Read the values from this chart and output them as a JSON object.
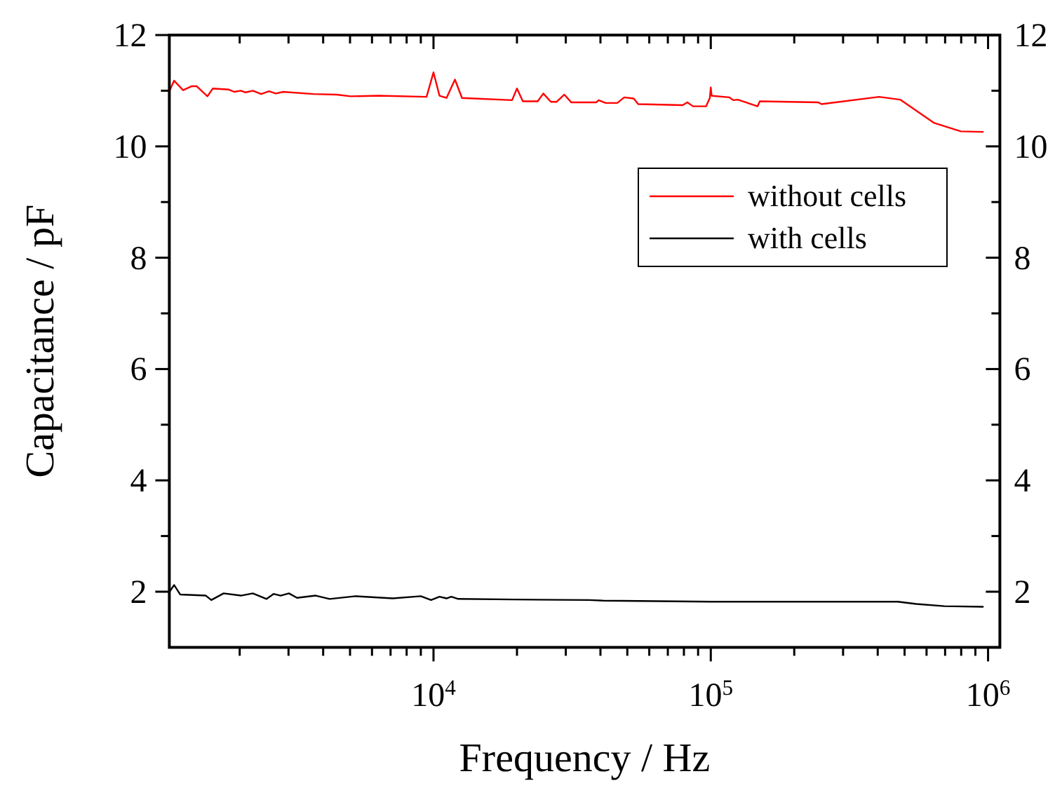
{
  "chart_data": {
    "type": "line",
    "xlabel": "Frequency / Hz",
    "ylabel": "Capacitance / pF",
    "log": "x",
    "xlim": [
      1115,
      1103000
    ],
    "ylim": [
      1,
      12
    ],
    "y2lim": [
      1,
      12
    ],
    "xticks": [
      {
        "value": 2000,
        "label": null
      },
      {
        "value": 3000,
        "label": null
      },
      {
        "value": 4000,
        "label": null
      },
      {
        "value": 5000,
        "label": null
      },
      {
        "value": 6000,
        "label": null
      },
      {
        "value": 7000,
        "label": null
      },
      {
        "value": 8000,
        "label": null
      },
      {
        "value": 9000,
        "label": null
      },
      {
        "value": 10000,
        "label": "10$^{4}$"
      },
      {
        "value": 20000,
        "label": null
      },
      {
        "value": 30000,
        "label": null
      },
      {
        "value": 40000,
        "label": null
      },
      {
        "value": 50000,
        "label": null
      },
      {
        "value": 60000,
        "label": null
      },
      {
        "value": 70000,
        "label": null
      },
      {
        "value": 80000,
        "label": null
      },
      {
        "value": 90000,
        "label": null
      },
      {
        "value": 100000,
        "label": "10$^{5}$"
      },
      {
        "value": 200000,
        "label": null
      },
      {
        "value": 300000,
        "label": null
      },
      {
        "value": 400000,
        "label": null
      },
      {
        "value": 500000,
        "label": null
      },
      {
        "value": 600000,
        "label": null
      },
      {
        "value": 700000,
        "label": null
      },
      {
        "value": 800000,
        "label": null
      },
      {
        "value": 900000,
        "label": null
      },
      {
        "value": 1000000,
        "label": "10$^{6}$"
      }
    ],
    "yticks": [
      2,
      {
        "value": 3,
        "label": null
      },
      4,
      {
        "value": 5,
        "label": null
      },
      6,
      {
        "value": 7,
        "label": null
      },
      8,
      {
        "value": 9,
        "label": null
      },
      10,
      {
        "value": 11,
        "label": null
      },
      12
    ],
    "y2ticks": [
      2,
      {
        "value": 3,
        "label": null
      },
      4,
      {
        "value": 5,
        "label": null
      },
      6,
      {
        "value": 7,
        "label": null
      },
      8,
      {
        "value": 9,
        "label": null
      },
      10,
      {
        "value": 11,
        "label": null
      },
      12
    ],
    "grid": false,
    "legend": "top right",
    "marker": "none",
    "line_style": "solid",
    "series": [
      {
        "name": "without cells",
        "color": "#ff0000",
        "x": [
          1120,
          1160,
          1250,
          1340,
          1400,
          1530,
          1600,
          1830,
          1910,
          2020,
          2100,
          2230,
          2390,
          2550,
          2700,
          2870,
          3690,
          4480,
          5030,
          6350,
          9440,
          10000,
          10510,
          11140,
          11950,
          12670,
          19200,
          20000,
          21000,
          23760,
          24890,
          26510,
          27770,
          29640,
          31420,
          38620,
          39390,
          41750,
          46000,
          48740,
          52700,
          54760,
          79200,
          82310,
          86270,
          96120,
          99200,
          100000,
          100700,
          116800,
          120500,
          125200,
          147400,
          150300,
          244100,
          251000,
          404600,
          481900,
          639500,
          797800,
          957900
        ],
        "values": [
          11.01,
          11.18,
          11.01,
          11.08,
          11.08,
          10.9,
          11.04,
          11.02,
          10.98,
          11.0,
          10.97,
          11.0,
          10.94,
          10.99,
          10.95,
          10.98,
          10.94,
          10.93,
          10.9,
          10.91,
          10.89,
          11.33,
          10.91,
          10.87,
          11.2,
          10.87,
          10.83,
          11.04,
          10.81,
          10.81,
          10.95,
          10.8,
          10.8,
          10.93,
          10.79,
          10.79,
          10.83,
          10.78,
          10.78,
          10.88,
          10.86,
          10.76,
          10.74,
          10.79,
          10.72,
          10.72,
          10.87,
          11.06,
          10.91,
          10.88,
          10.83,
          10.84,
          10.72,
          10.81,
          10.79,
          10.76,
          10.89,
          10.84,
          10.42,
          10.27,
          10.26
        ]
      },
      {
        "name": "with cells",
        "color": "#000000",
        "x": [
          1120,
          1160,
          1220,
          1510,
          1580,
          1750,
          2020,
          2230,
          2500,
          2650,
          2810,
          3010,
          3220,
          3760,
          4220,
          5230,
          7130,
          9000,
          9800,
          10510,
          11140,
          11590,
          12290,
          19590,
          36430,
          40930,
          100000,
          472400,
          551400,
          696000,
          957900
        ],
        "values": [
          2.01,
          2.12,
          1.95,
          1.93,
          1.85,
          1.97,
          1.93,
          1.97,
          1.87,
          1.96,
          1.93,
          1.97,
          1.89,
          1.93,
          1.87,
          1.92,
          1.88,
          1.92,
          1.85,
          1.91,
          1.88,
          1.91,
          1.87,
          1.86,
          1.85,
          1.84,
          1.82,
          1.82,
          1.78,
          1.74,
          1.73
        ]
      }
    ]
  }
}
